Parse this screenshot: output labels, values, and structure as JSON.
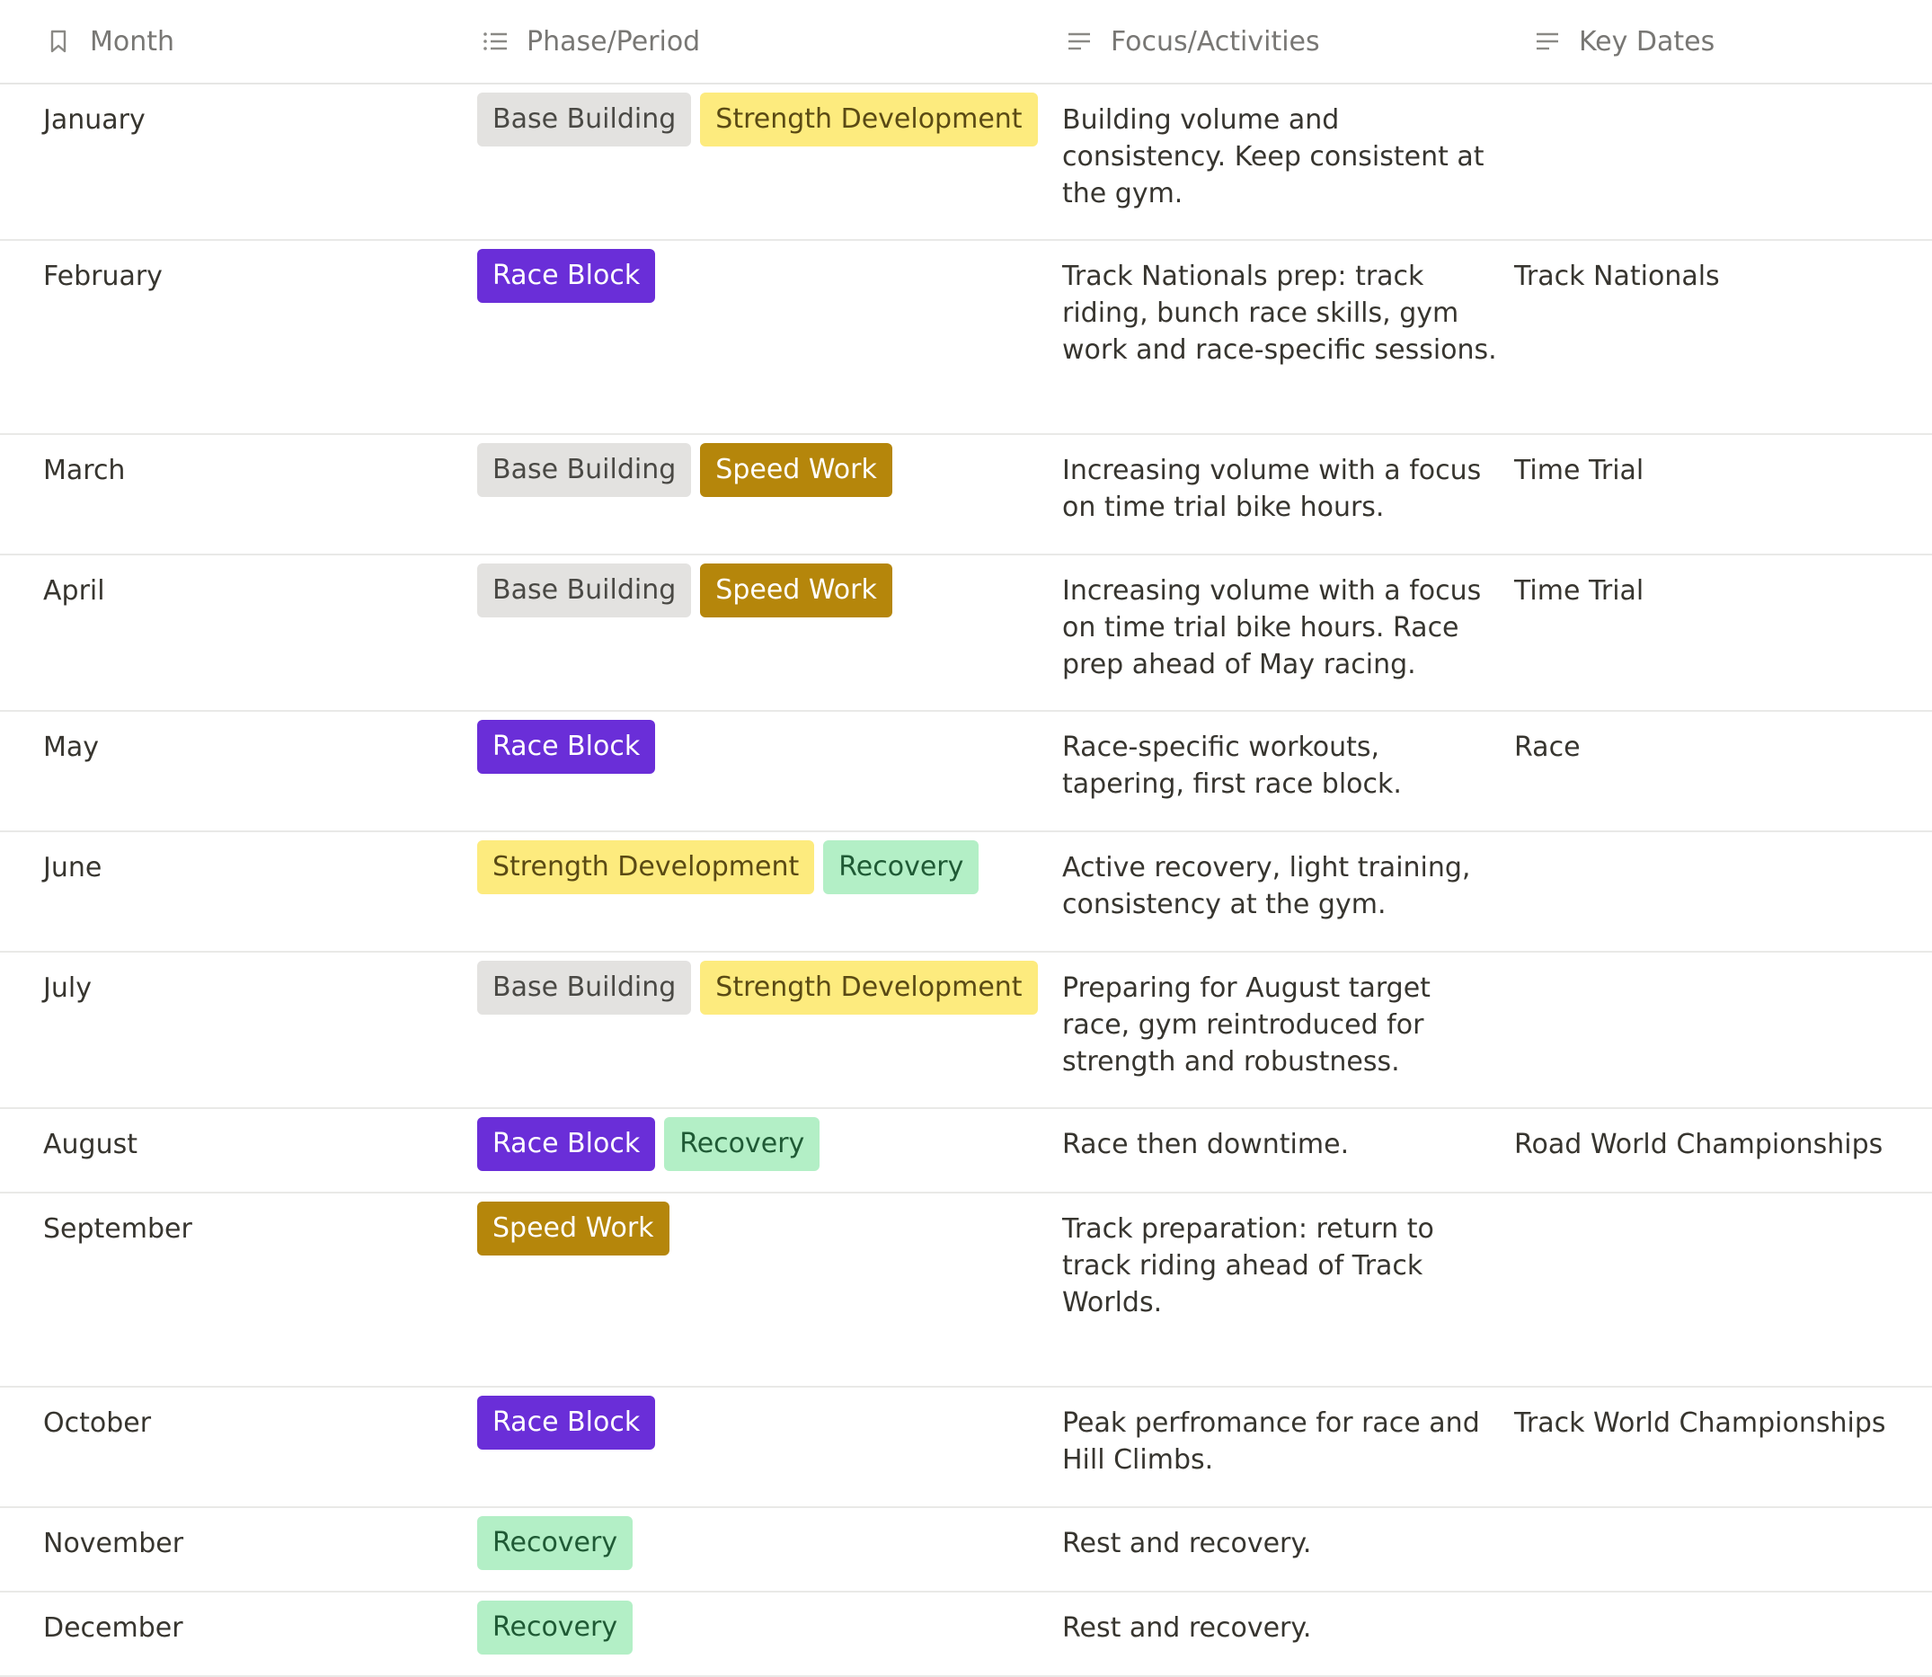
{
  "colors": {
    "base": "#e3e2e0",
    "strength": "#fdeb7e",
    "race": "#6a2ed8",
    "speed": "#b5860b",
    "recovery": "#b3efc6"
  },
  "header": {
    "month": "Month",
    "phase": "Phase/Period",
    "focus": "Focus/Activities",
    "key_dates": "Key Dates"
  },
  "rows": [
    {
      "month": "January",
      "tags": [
        {
          "label": "Base Building",
          "type": "base"
        },
        {
          "label": "Strength Development",
          "type": "strength"
        }
      ],
      "focus": "Building volume and consistency. Keep consistent at the gym.",
      "key": ""
    },
    {
      "month": "February",
      "tags": [
        {
          "label": "Race Block",
          "type": "race"
        }
      ],
      "focus": "Track Nationals prep: track riding, bunch race skills, gym work and race-specific sessions.",
      "key": "Track Nationals"
    },
    {
      "month": "March",
      "tags": [
        {
          "label": "Base Building",
          "type": "base"
        },
        {
          "label": "Speed Work",
          "type": "speed"
        }
      ],
      "focus": "Increasing volume with a focus on time trial bike hours.",
      "key": "Time Trial"
    },
    {
      "month": "April",
      "tags": [
        {
          "label": "Base Building",
          "type": "base"
        },
        {
          "label": "Speed Work",
          "type": "speed"
        }
      ],
      "focus": "Increasing volume with a focus on time trial bike hours. Race prep ahead of May racing.",
      "key": "Time Trial"
    },
    {
      "month": "May",
      "tags": [
        {
          "label": "Race Block",
          "type": "race"
        }
      ],
      "focus": "Race-specific workouts, tapering, first race block.",
      "key": "Race"
    },
    {
      "month": "June",
      "tags": [
        {
          "label": "Strength Development",
          "type": "strength"
        },
        {
          "label": "Recovery",
          "type": "recovery"
        }
      ],
      "focus": "Active recovery, light training, consistency at the gym.",
      "key": ""
    },
    {
      "month": "July",
      "tags": [
        {
          "label": "Base Building",
          "type": "base"
        },
        {
          "label": "Strength Development",
          "type": "strength"
        }
      ],
      "focus": "Preparing for August target race, gym reintroduced for strength and robustness.",
      "key": ""
    },
    {
      "month": "August",
      "tags": [
        {
          "label": "Race Block",
          "type": "race"
        },
        {
          "label": "Recovery",
          "type": "recovery"
        }
      ],
      "focus": "Race then downtime.",
      "key": "Road World Championships"
    },
    {
      "month": "September",
      "tags": [
        {
          "label": "Speed Work",
          "type": "speed"
        }
      ],
      "focus": "Track preparation: return to track riding ahead of Track Worlds.",
      "key": ""
    },
    {
      "month": "October",
      "tags": [
        {
          "label": "Race Block",
          "type": "race"
        }
      ],
      "focus": "Peak perfromance for race and Hill Climbs.",
      "key": "Track World Championships"
    },
    {
      "month": "November",
      "tags": [
        {
          "label": "Recovery",
          "type": "recovery"
        }
      ],
      "focus": "Rest and recovery.",
      "key": ""
    },
    {
      "month": "December",
      "tags": [
        {
          "label": "Recovery",
          "type": "recovery"
        }
      ],
      "focus": "Rest and recovery.",
      "key": ""
    }
  ]
}
